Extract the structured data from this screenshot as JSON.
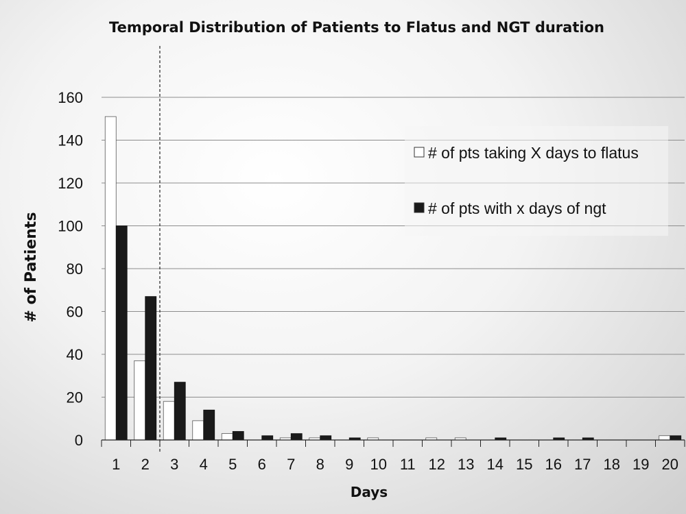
{
  "chart_data": {
    "type": "bar",
    "title": "Temporal Distribution of Patients to Flatus and NGT duration",
    "xlabel": "Days",
    "ylabel": "# of Patients",
    "ylim": [
      0,
      160
    ],
    "yticks": [
      0,
      20,
      40,
      60,
      80,
      100,
      120,
      140,
      160
    ],
    "categories": [
      "1",
      "2",
      "3",
      "4",
      "5",
      "6",
      "7",
      "8",
      "9",
      "10",
      "11",
      "12",
      "13",
      "14",
      "15",
      "16",
      "17",
      "18",
      "19",
      "20"
    ],
    "series": [
      {
        "name": "# of pts taking X days to flatus",
        "color": "#ffffff",
        "values": [
          151,
          37,
          18,
          9,
          3,
          0,
          1,
          1,
          0,
          1,
          0,
          1,
          1,
          0,
          0,
          0,
          0,
          0,
          0,
          2
        ]
      },
      {
        "name": "# of pts with x days of ngt",
        "color": "#1a1a1a",
        "values": [
          100,
          67,
          27,
          14,
          4,
          2,
          3,
          2,
          1,
          0,
          0,
          0,
          0,
          1,
          0,
          1,
          1,
          0,
          0,
          2
        ]
      }
    ],
    "grid": true,
    "legend_position": "top-right",
    "annotation": "dashed vertical line between day 2 and day 3"
  }
}
